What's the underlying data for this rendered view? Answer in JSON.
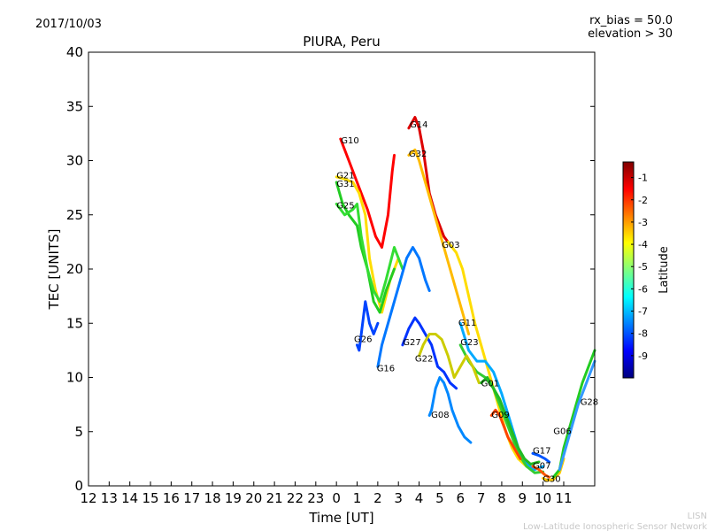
{
  "header": {
    "date": "2017/10/03",
    "bias": "rx_bias = 50.0",
    "elevation": "elevation > 30"
  },
  "footer": {
    "org_short": "LISN",
    "org_long": "Low-Latitude Ionospheric Sensor Network"
  },
  "colors": {
    "axis": "#000000",
    "footer_text": "#c8c8c8",
    "colormap": [
      "#00007f",
      "#0000ff",
      "#007fff",
      "#00ffff",
      "#7fff7f",
      "#ffff00",
      "#ff7f00",
      "#ff0000",
      "#7f0000"
    ]
  },
  "chart_data": {
    "type": "line",
    "title": "PIURA, Peru",
    "xlabel": "Time [UT]",
    "ylabel": "TEC [UNITS]",
    "x_range_hours": [
      12,
      36.5
    ],
    "ylim": [
      0,
      40
    ],
    "grid": false,
    "x_tick_hours": [
      12,
      13,
      14,
      15,
      16,
      17,
      18,
      19,
      20,
      21,
      22,
      23,
      24,
      25,
      26,
      27,
      28,
      29,
      30,
      31,
      32,
      33,
      34,
      35
    ],
    "x_tick_labels": [
      "12",
      "13",
      "14",
      "15",
      "16",
      "17",
      "18",
      "19",
      "20",
      "21",
      "22",
      "23",
      "0",
      "1",
      "2",
      "3",
      "4",
      "5",
      "6",
      "7",
      "8",
      "9",
      "10",
      "11"
    ],
    "y_ticks": [
      0,
      5,
      10,
      15,
      20,
      25,
      30,
      35,
      40
    ],
    "y_tick_labels": [
      "0",
      "5",
      "10",
      "15",
      "20",
      "25",
      "30",
      "35",
      "40"
    ],
    "colorbar": {
      "label": "Latitude",
      "range": [
        -10,
        -0.3
      ],
      "ticks": [
        -9,
        -8,
        -7,
        -6,
        -5,
        -4,
        -3,
        -2,
        -1
      ],
      "tick_labels": [
        "-9",
        "-8",
        "-7",
        "-6",
        "-5",
        "-4",
        "-3",
        "-2",
        "-1"
      ]
    },
    "series": [
      {
        "name": "G10",
        "color": "#ff0000",
        "points": [
          [
            24.2,
            32
          ],
          [
            24.6,
            30
          ],
          [
            25.0,
            28
          ],
          [
            25.5,
            25.5
          ],
          [
            25.9,
            23
          ],
          [
            26.2,
            22
          ],
          [
            26.5,
            25
          ],
          [
            26.7,
            29
          ],
          [
            26.8,
            30.5
          ]
        ]
      },
      {
        "name": "G21",
        "color": "#ffdd00",
        "points": [
          [
            24.0,
            28.5
          ],
          [
            24.4,
            28.3
          ],
          [
            24.8,
            28
          ],
          [
            25.1,
            27
          ],
          [
            25.4,
            25
          ],
          [
            25.6,
            21
          ],
          [
            25.9,
            18
          ],
          [
            26.2,
            16
          ],
          [
            26.6,
            19
          ],
          [
            27.0,
            21
          ]
        ]
      },
      {
        "name": "G31",
        "color": "#22cc22",
        "points": [
          [
            24.0,
            28
          ],
          [
            24.3,
            26
          ],
          [
            24.6,
            25
          ],
          [
            25.0,
            24
          ],
          [
            25.2,
            22
          ],
          [
            25.5,
            20
          ],
          [
            25.8,
            17
          ],
          [
            26.1,
            16
          ],
          [
            26.4,
            18
          ],
          [
            26.8,
            20
          ]
        ]
      },
      {
        "name": "G25",
        "color": "#33dd33",
        "points": [
          [
            24.0,
            26
          ],
          [
            24.4,
            25
          ],
          [
            24.8,
            25.5
          ],
          [
            25.0,
            26
          ],
          [
            25.2,
            23
          ],
          [
            25.5,
            20
          ],
          [
            25.8,
            18
          ],
          [
            26.1,
            17
          ],
          [
            26.4,
            19
          ],
          [
            26.8,
            22
          ],
          [
            27.2,
            20
          ]
        ]
      },
      {
        "name": "G26",
        "color": "#0044ff",
        "points": [
          [
            25.0,
            13
          ],
          [
            25.1,
            12.5
          ],
          [
            25.2,
            14
          ],
          [
            25.4,
            17
          ],
          [
            25.6,
            15
          ],
          [
            25.8,
            14
          ],
          [
            26.0,
            15
          ]
        ]
      },
      {
        "name": "G16",
        "color": "#0077ff",
        "points": [
          [
            26.0,
            11
          ],
          [
            26.2,
            13
          ],
          [
            26.5,
            15
          ],
          [
            26.8,
            17
          ],
          [
            27.1,
            19
          ],
          [
            27.4,
            21
          ],
          [
            27.7,
            22
          ],
          [
            28.0,
            21
          ],
          [
            28.3,
            19
          ],
          [
            28.5,
            18
          ]
        ]
      },
      {
        "name": "G14",
        "color": "#dd0000",
        "points": [
          [
            27.5,
            33
          ],
          [
            27.8,
            34
          ],
          [
            28.0,
            33
          ],
          [
            28.2,
            31
          ],
          [
            28.5,
            27
          ],
          [
            28.8,
            25
          ],
          [
            29.0,
            24
          ],
          [
            29.2,
            23
          ],
          [
            29.4,
            22.5
          ],
          [
            29.6,
            22
          ]
        ]
      },
      {
        "name": "G32",
        "color": "#ffbb00",
        "points": [
          [
            27.5,
            30.5
          ],
          [
            27.8,
            31
          ],
          [
            28.0,
            30
          ],
          [
            28.3,
            28
          ],
          [
            28.6,
            26
          ],
          [
            28.9,
            24
          ],
          [
            29.2,
            22
          ],
          [
            29.5,
            20
          ],
          [
            29.8,
            18
          ],
          [
            30.1,
            16
          ],
          [
            30.4,
            14
          ]
        ]
      },
      {
        "name": "G03",
        "color": "#ffdd00",
        "points": [
          [
            29.4,
            22.5
          ],
          [
            29.8,
            21.5
          ],
          [
            30.1,
            20
          ],
          [
            30.4,
            17.5
          ],
          [
            30.7,
            15
          ],
          [
            31.0,
            13
          ],
          [
            31.3,
            11
          ],
          [
            31.6,
            9
          ],
          [
            31.9,
            7
          ],
          [
            32.2,
            5
          ],
          [
            32.5,
            3.5
          ],
          [
            32.8,
            2.5
          ],
          [
            33.2,
            1.8
          ]
        ]
      },
      {
        "name": "G11",
        "color": "#00aaff",
        "points": [
          [
            30.0,
            15
          ],
          [
            30.4,
            12.5
          ],
          [
            30.8,
            11.5
          ],
          [
            31.2,
            11.5
          ],
          [
            31.6,
            10.5
          ],
          [
            32.0,
            8.5
          ],
          [
            32.4,
            6
          ],
          [
            32.8,
            3.5
          ],
          [
            33.2,
            2
          ],
          [
            33.6,
            1.5
          ],
          [
            34.0,
            1.8
          ]
        ]
      },
      {
        "name": "G23",
        "color": "#33cc33",
        "points": [
          [
            30.0,
            13
          ],
          [
            30.4,
            11.5
          ],
          [
            30.8,
            10.5
          ],
          [
            31.2,
            10
          ],
          [
            31.6,
            9
          ],
          [
            32.0,
            7
          ],
          [
            32.4,
            5
          ],
          [
            32.8,
            3
          ],
          [
            33.2,
            1.8
          ],
          [
            33.6,
            1.2
          ],
          [
            34.0,
            1.3
          ]
        ]
      },
      {
        "name": "G27",
        "color": "#0033ff",
        "points": [
          [
            27.2,
            13
          ],
          [
            27.5,
            14.5
          ],
          [
            27.8,
            15.5
          ],
          [
            28.0,
            15
          ],
          [
            28.3,
            14
          ],
          [
            28.6,
            13
          ],
          [
            28.9,
            11
          ],
          [
            29.2,
            10.5
          ],
          [
            29.5,
            9.5
          ],
          [
            29.8,
            9
          ]
        ]
      },
      {
        "name": "G22",
        "color": "#cccc00",
        "points": [
          [
            28.0,
            12
          ],
          [
            28.2,
            13
          ],
          [
            28.5,
            14
          ],
          [
            28.8,
            14
          ],
          [
            29.1,
            13.5
          ],
          [
            29.4,
            12
          ],
          [
            29.7,
            10
          ],
          [
            30.0,
            11
          ],
          [
            30.3,
            12
          ],
          [
            30.6,
            11
          ],
          [
            30.9,
            9.5
          ]
        ]
      },
      {
        "name": "G08",
        "color": "#0088ff",
        "points": [
          [
            28.5,
            6.5
          ],
          [
            28.6,
            7
          ],
          [
            28.8,
            9
          ],
          [
            29.0,
            10
          ],
          [
            29.2,
            9.5
          ],
          [
            29.4,
            8.5
          ],
          [
            29.6,
            7
          ],
          [
            29.9,
            5.5
          ],
          [
            30.2,
            4.5
          ],
          [
            30.5,
            4
          ]
        ]
      },
      {
        "name": "G01",
        "color": "#22bb22",
        "points": [
          [
            31.0,
            9.5
          ],
          [
            31.3,
            10
          ],
          [
            31.6,
            9
          ],
          [
            31.9,
            8
          ],
          [
            32.2,
            6.5
          ],
          [
            32.5,
            5
          ],
          [
            32.8,
            3.5
          ],
          [
            33.1,
            2.5
          ],
          [
            33.4,
            2
          ],
          [
            33.8,
            2.2
          ]
        ]
      },
      {
        "name": "G09",
        "color": "#ff4400",
        "points": [
          [
            31.5,
            6.5
          ],
          [
            31.7,
            7
          ],
          [
            31.9,
            6.5
          ],
          [
            32.1,
            5.5
          ],
          [
            32.3,
            4.5
          ],
          [
            32.6,
            3.5
          ],
          [
            32.9,
            2.5
          ]
        ]
      },
      {
        "name": "G17",
        "color": "#0055ff",
        "points": [
          [
            33.5,
            3
          ],
          [
            33.8,
            2.8
          ],
          [
            34.1,
            2.5
          ],
          [
            34.3,
            2.2
          ]
        ]
      },
      {
        "name": "G07",
        "color": "#ff5500",
        "points": [
          [
            33.5,
            1.8
          ],
          [
            33.8,
            1.5
          ],
          [
            34.1,
            1
          ],
          [
            34.3,
            0.8
          ]
        ]
      },
      {
        "name": "G30",
        "color": "#ffcc00",
        "points": [
          [
            34.0,
            0.7
          ],
          [
            34.2,
            0.5
          ],
          [
            34.5,
            0.6
          ],
          [
            34.8,
            1.2
          ],
          [
            35.0,
            2.5
          ]
        ]
      },
      {
        "name": "G06",
        "color": "#22cc22",
        "points": [
          [
            34.5,
            0.8
          ],
          [
            34.8,
            1.5
          ],
          [
            35.0,
            3.5
          ],
          [
            35.3,
            5.5
          ],
          [
            35.6,
            7.5
          ],
          [
            35.9,
            9.5
          ],
          [
            36.2,
            11
          ],
          [
            36.5,
            12.5
          ]
        ]
      },
      {
        "name": "G28",
        "color": "#3399ff",
        "points": [
          [
            34.8,
            1.5
          ],
          [
            35.1,
            3.5
          ],
          [
            35.4,
            5.5
          ],
          [
            35.7,
            7.5
          ],
          [
            36.0,
            9
          ],
          [
            36.3,
            10.5
          ],
          [
            36.5,
            11.5
          ]
        ]
      }
    ],
    "sat_labels": [
      {
        "text": "G10",
        "x": 24.22,
        "y": 31.9
      },
      {
        "text": "G21",
        "x": 24.0,
        "y": 28.7
      },
      {
        "text": "G31",
        "x": 24.0,
        "y": 27.9
      },
      {
        "text": "G25",
        "x": 24.0,
        "y": 25.9
      },
      {
        "text": "G26",
        "x": 24.85,
        "y": 13.6
      },
      {
        "text": "G16",
        "x": 25.95,
        "y": 10.9
      },
      {
        "text": "G14",
        "x": 27.55,
        "y": 33.4
      },
      {
        "text": "G32",
        "x": 27.5,
        "y": 30.7
      },
      {
        "text": "G03",
        "x": 29.1,
        "y": 22.3
      },
      {
        "text": "G11",
        "x": 29.9,
        "y": 15.1
      },
      {
        "text": "G23",
        "x": 30.0,
        "y": 13.3
      },
      {
        "text": "G27",
        "x": 27.22,
        "y": 13.3
      },
      {
        "text": "G22",
        "x": 27.8,
        "y": 11.8
      },
      {
        "text": "G08",
        "x": 28.58,
        "y": 6.6
      },
      {
        "text": "G01",
        "x": 31.0,
        "y": 9.5
      },
      {
        "text": "G09",
        "x": 31.5,
        "y": 6.6
      },
      {
        "text": "G17",
        "x": 33.5,
        "y": 3.3
      },
      {
        "text": "G07",
        "x": 33.5,
        "y": 1.9
      },
      {
        "text": "G30",
        "x": 33.98,
        "y": 0.7
      },
      {
        "text": "G06",
        "x": 34.5,
        "y": 5.1
      },
      {
        "text": "G28",
        "x": 35.8,
        "y": 7.8
      }
    ]
  }
}
